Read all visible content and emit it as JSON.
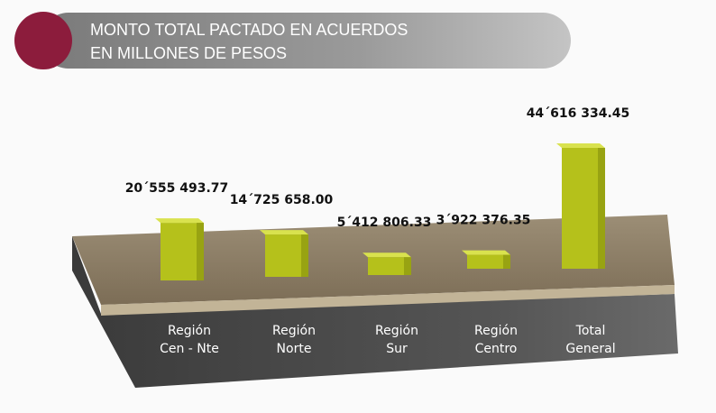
{
  "chart_data": {
    "type": "bar",
    "title": [
      "MONTO TOTAL PACTADO EN ACUERDOS",
      "EN MILLONES DE PESOS"
    ],
    "categories": [
      "Región Cen - Nte",
      "Región Norte",
      "Región Sur",
      "Región Centro",
      "Total General"
    ],
    "values": [
      20555493.77,
      14725658.0,
      5412806.33,
      3922376.35,
      44616334.45
    ],
    "value_labels": [
      "20´555 493.77",
      "14´725 658.00",
      "5´412 806.33",
      "3´922 376.35",
      "44´616 334.45"
    ],
    "color": "#b5c11b"
  }
}
